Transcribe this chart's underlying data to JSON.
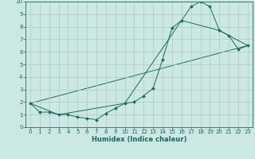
{
  "xlabel": "Humidex (Indice chaleur)",
  "xlim": [
    -0.5,
    23.5
  ],
  "ylim": [
    0,
    10
  ],
  "xticks": [
    0,
    1,
    2,
    3,
    4,
    5,
    6,
    7,
    8,
    9,
    10,
    11,
    12,
    13,
    14,
    15,
    16,
    17,
    18,
    19,
    20,
    21,
    22,
    23
  ],
  "yticks": [
    0,
    1,
    2,
    3,
    4,
    5,
    6,
    7,
    8,
    9,
    10
  ],
  "bg_color": "#cce8e4",
  "grid_color": "#b0c8c4",
  "line_color": "#1a6b5a",
  "line1_x": [
    0,
    1,
    2,
    3,
    4,
    5,
    6,
    7,
    8,
    9,
    10,
    11,
    12,
    13,
    14,
    15,
    16,
    17,
    18,
    19,
    20,
    21,
    22,
    23
  ],
  "line1_y": [
    1.9,
    1.2,
    1.2,
    1.0,
    1.0,
    0.8,
    0.7,
    0.6,
    1.1,
    1.5,
    1.9,
    2.0,
    2.5,
    3.1,
    5.4,
    7.9,
    8.5,
    9.6,
    10.0,
    9.6,
    7.7,
    7.3,
    6.2,
    6.5
  ],
  "line2_x": [
    0,
    3,
    10,
    16,
    20,
    23
  ],
  "line2_y": [
    1.9,
    1.0,
    1.9,
    8.5,
    7.7,
    6.5
  ],
  "line3_x": [
    0,
    23
  ],
  "line3_y": [
    1.9,
    6.5
  ]
}
